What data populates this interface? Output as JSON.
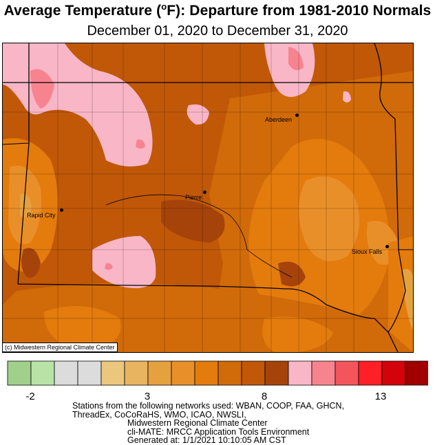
{
  "title_main": "Average Temperature (",
  "title_unit_sup": "o",
  "title_rest": "F): Departure from 1981-2010 Normals",
  "subtitle": "December 01, 2020 to December 31, 2020",
  "credit": "(c) Midwestern Regional Climate Center",
  "cities": [
    {
      "name": "Aberdeen"
    },
    {
      "name": "Pierre"
    },
    {
      "name": "Rapid City"
    },
    {
      "name": "Sioux Falls"
    }
  ],
  "legend": {
    "colors": [
      "#a1cf8c",
      "#b8e3a6",
      "#dcdcdc",
      "#dcdcdc",
      "#ebc77e",
      "#e8b45f",
      "#e6a13f",
      "#e98f2a",
      "#e47b0d",
      "#d16a09",
      "#c05808",
      "#a6430a",
      "#f9b6c7",
      "#f7838f",
      "#f4545c",
      "#ff1f26",
      "#d4020a",
      "#a00000"
    ],
    "tick_labels": [
      "-2",
      "3",
      "8",
      "13"
    ]
  },
  "footer": {
    "line1": "Stations from the following networks used: WBAN, COOP, FAA, GHCN,",
    "line2": "ThreadEx, CoCoRaHS, WMO, ICAO, NWSLI,",
    "line3": "Midwestern Regional Climate Center",
    "line4": "cli-MATE: MRCC Application Tools Environment",
    "line5": "Generated at: 1/1/2021 10:10:05 AM CST"
  }
}
